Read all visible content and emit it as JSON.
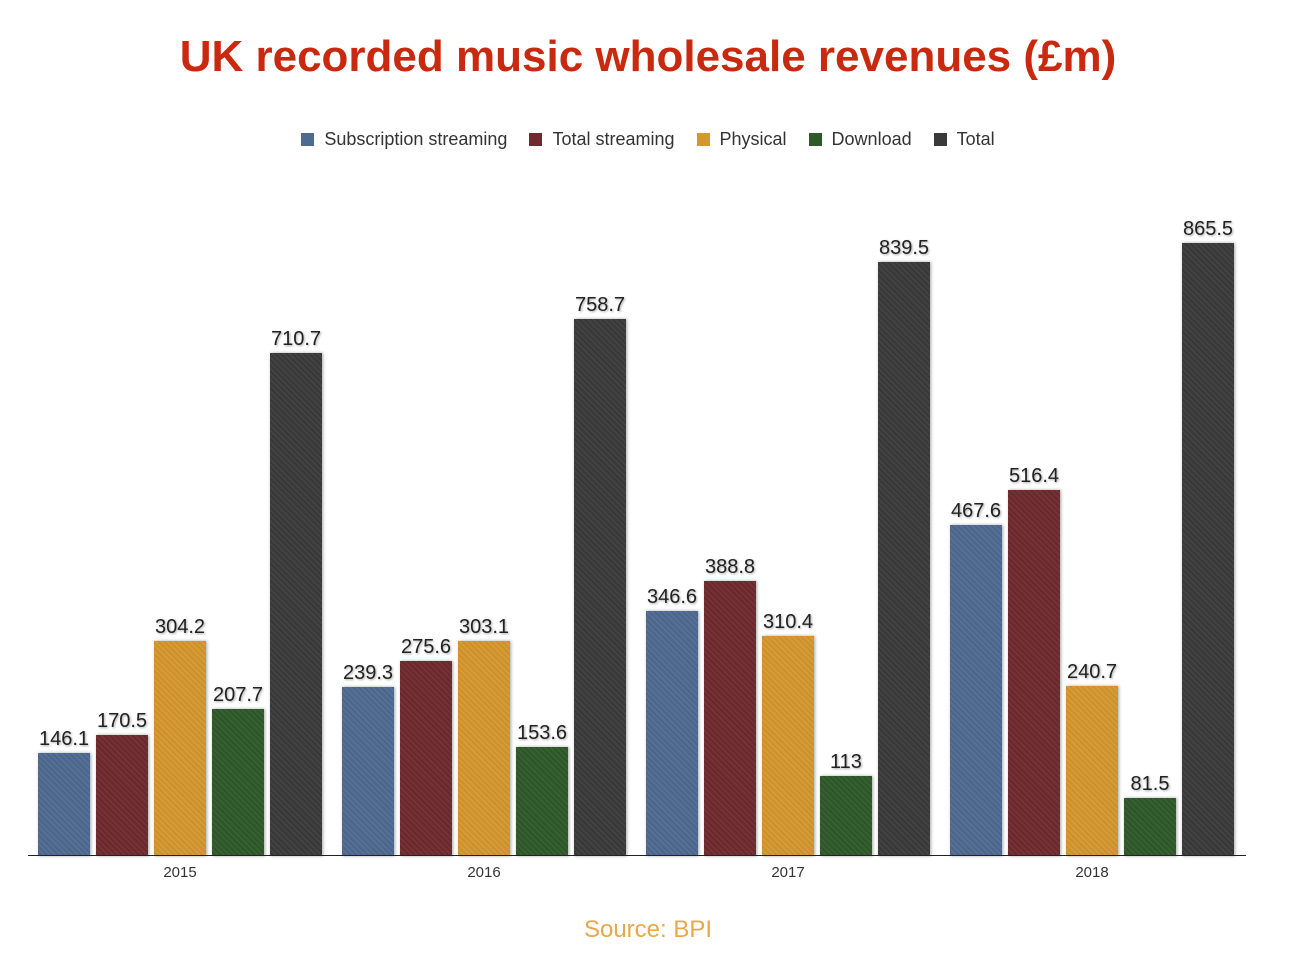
{
  "title": "UK recorded music wholesale revenues (£m)",
  "source": "Source: BPI",
  "legend": [
    {
      "label": "Subscription streaming",
      "color": "#4e6a90"
    },
    {
      "label": "Total streaming",
      "color": "#6e2a2e"
    },
    {
      "label": "Physical",
      "color": "#d4962e"
    },
    {
      "label": "Download",
      "color": "#2e5a2a"
    },
    {
      "label": "Total",
      "color": "#3a3a3a"
    }
  ],
  "chart_data": {
    "type": "bar",
    "title": "UK recorded music wholesale revenues (£m)",
    "xlabel": "",
    "ylabel": "",
    "categories": [
      "2015",
      "2016",
      "2017",
      "2018"
    ],
    "series": [
      {
        "name": "Subscription streaming",
        "color": "#4e6a90",
        "values": [
          146.1,
          239.3,
          346.6,
          467.6
        ],
        "labels": [
          "146.1",
          "239.3",
          "346.6",
          "467.6"
        ]
      },
      {
        "name": "Total streaming",
        "color": "#6e2a2e",
        "values": [
          170.5,
          275.6,
          388.8,
          516.4
        ],
        "labels": [
          "170.5",
          "275.6",
          "388.8",
          "516.4"
        ]
      },
      {
        "name": "Physical",
        "color": "#d4962e",
        "values": [
          304.2,
          303.1,
          310.4,
          240.7
        ],
        "labels": [
          "304.2",
          "303.1",
          "310.4",
          "240.7"
        ]
      },
      {
        "name": "Download",
        "color": "#2e5a2a",
        "values": [
          207.7,
          153.6,
          113,
          81.5
        ],
        "labels": [
          "207.7",
          "153.6",
          "113",
          "81.5"
        ]
      },
      {
        "name": "Total",
        "color": "#3a3a3a",
        "values": [
          710.7,
          758.7,
          839.5,
          865.5
        ],
        "labels": [
          "710.7",
          "758.7",
          "839.5",
          "865.5"
        ]
      }
    ],
    "ylim": [
      0,
      950
    ],
    "grid": false,
    "legend_position": "top",
    "annotations": [
      "Source: BPI"
    ]
  }
}
